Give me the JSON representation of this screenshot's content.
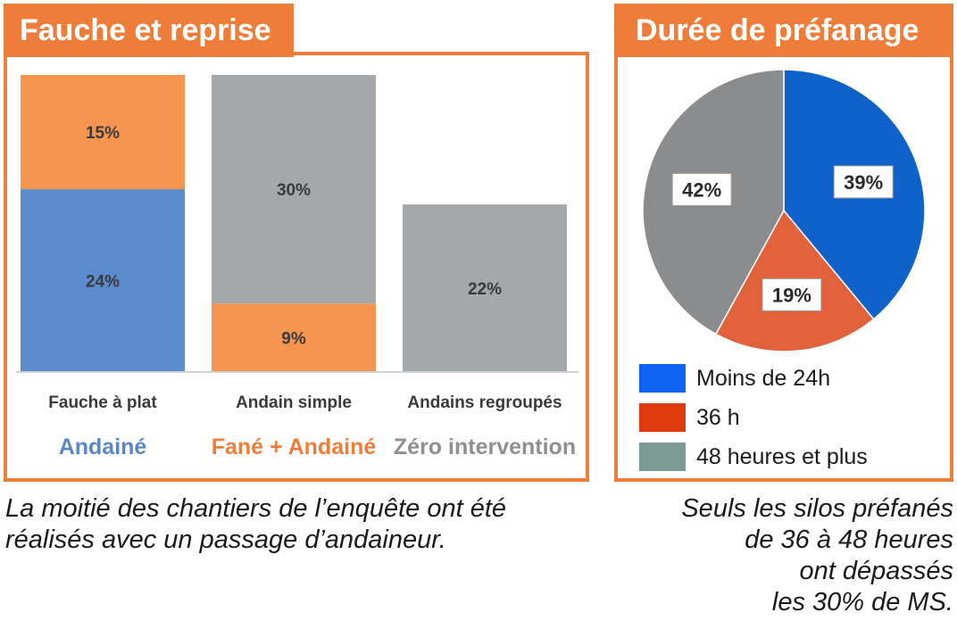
{
  "left_panel": {
    "title": "Fauche et reprise",
    "caption_lines": [
      "La moitié des chantiers de l’enquête ont été",
      "réalisés avec un passage d’andaineur."
    ],
    "group_labels": [
      {
        "text": "Andainé",
        "color": "#5b86c5"
      },
      {
        "text": "Fané + Andainé",
        "color": "#ef7d3a"
      },
      {
        "text": "Zéro intervention",
        "color": "#8f8f8f"
      }
    ]
  },
  "right_panel": {
    "title": "Durée de préfanage",
    "caption_lines": [
      "Seuls les silos préfanés",
      "de 36 à 48 heures",
      "ont dépassés",
      "les 30% de MS."
    ],
    "legend": [
      {
        "label": "Moins de 24h",
        "color": "#0c63f3"
      },
      {
        "label": "36 h",
        "color": "#e03a0c"
      },
      {
        "label": "48 heures et plus",
        "color": "#7a9a93"
      }
    ]
  },
  "chart_data": [
    {
      "type": "bar",
      "stacked": true,
      "categories": [
        "Fauche à plat",
        "Andain simple",
        "Andains regroupés"
      ],
      "ylim": [
        0,
        39
      ],
      "segments": [
        [
          {
            "value": 24,
            "label": "24%",
            "color": "#5b8ccf"
          },
          {
            "value": 15,
            "label": "15%",
            "color": "#f5954f"
          }
        ],
        [
          {
            "value": 9,
            "label": "9%",
            "color": "#f5954f"
          },
          {
            "value": 30,
            "label": "30%",
            "color": "#a5a8aa"
          }
        ],
        [
          {
            "value": 22,
            "label": "22%",
            "color": "#a5a8aa"
          }
        ]
      ],
      "grid": false,
      "legend": false
    },
    {
      "type": "pie",
      "slices": [
        {
          "label": "39%",
          "value": 39,
          "color": "#0f62c9"
        },
        {
          "label": "19%",
          "value": 19,
          "color": "#e0613a"
        },
        {
          "label": "42%",
          "value": 42,
          "color": "#8a8c8e"
        }
      ],
      "start_angle_deg": 0,
      "legend": "bottom"
    }
  ]
}
